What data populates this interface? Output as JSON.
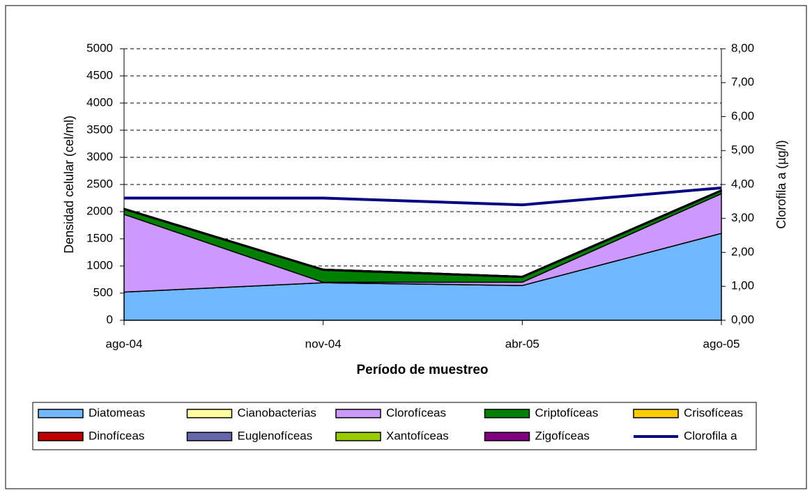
{
  "chart_data": {
    "type": "stacked-area-line",
    "categories": [
      "ago-04",
      "nov-04",
      "abr-05",
      "ago-05"
    ],
    "x_label": "Período de muestreo",
    "y_label": "Densidad celular (cel/ml)",
    "y2_label": "Clorofila a (µg/l)",
    "ylim": [
      0,
      5000
    ],
    "yticks": [
      0,
      500,
      1000,
      1500,
      2000,
      2500,
      3000,
      3500,
      4000,
      4500,
      5000
    ],
    "y2lim": [
      0,
      8
    ],
    "y2ticks": [
      {
        "value": 0,
        "label": "0,00"
      },
      {
        "value": 1,
        "label": "1,00"
      },
      {
        "value": 2,
        "label": "2,00"
      },
      {
        "value": 3,
        "label": "3,00"
      },
      {
        "value": 4,
        "label": "4,00"
      },
      {
        "value": 5,
        "label": "5,00"
      },
      {
        "value": 6,
        "label": "6,00"
      },
      {
        "value": 7,
        "label": "7,00"
      },
      {
        "value": 8,
        "label": "8,00"
      }
    ],
    "grid": true,
    "series": [
      {
        "name": "Diatomeas",
        "color": "#70b8ff",
        "values": [
          520,
          690,
          640,
          1600
        ]
      },
      {
        "name": "Cianobacterias",
        "color": "#ffffa0",
        "values": [
          0,
          0,
          0,
          0
        ]
      },
      {
        "name": "Clorofíceas",
        "color": "#cc99ff",
        "values": [
          1430,
          10,
          60,
          730
        ]
      },
      {
        "name": "Criptofíceas",
        "color": "#008000",
        "values": [
          90,
          220,
          90,
          50
        ]
      },
      {
        "name": "Crisofíceas",
        "color": "#ffcc00",
        "values": [
          0,
          0,
          0,
          0
        ]
      },
      {
        "name": "Dinofíceas",
        "color": "#c00000",
        "values": [
          20,
          20,
          20,
          20
        ]
      },
      {
        "name": "Euglenofíceas",
        "color": "#6666aa",
        "values": [
          0,
          0,
          0,
          0
        ]
      },
      {
        "name": "Xantofíceas",
        "color": "#99cc00",
        "values": [
          0,
          0,
          0,
          0
        ]
      },
      {
        "name": "Zigofíceas",
        "color": "#800080",
        "values": [
          0,
          0,
          0,
          0
        ]
      },
      {
        "name": "Clorofila a",
        "color": "#000080",
        "axis": "y2",
        "values": [
          3.6,
          3.6,
          3.4,
          3.9
        ]
      }
    ]
  }
}
